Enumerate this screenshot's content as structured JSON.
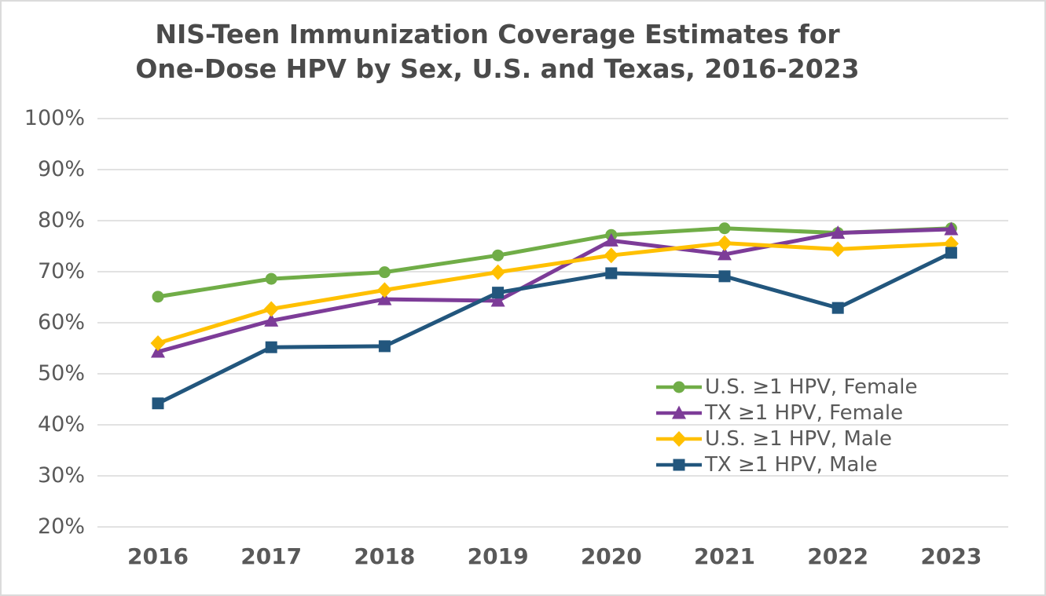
{
  "window": {
    "background": "#ffffff",
    "border_color": "#dbdbdb",
    "gridline_color": "#d9d9d9",
    "axis_text_color": "#595959",
    "title_text_color": "#4a4a4a"
  },
  "chart_data": {
    "type": "line",
    "title": "NIS-Teen Immunization Coverage Estimates for One-Dose HPV by Sex, U.S. and Texas, 2016-2023",
    "title_line1": "NIS-Teen Immunization Coverage Estimates for",
    "title_line2": "One-Dose HPV by Sex, U.S. and Texas, 2016-2023",
    "categories": [
      "2016",
      "2017",
      "2018",
      "2019",
      "2020",
      "2021",
      "2022",
      "2023"
    ],
    "series": [
      {
        "name": "U.S. ≥1 HPV, Female",
        "color": "#70AD47",
        "marker": "circle",
        "values": [
          65.1,
          68.6,
          69.9,
          73.2,
          77.2,
          78.5,
          77.6,
          78.5
        ]
      },
      {
        "name": "TX ≥1 HPV, Female",
        "color": "#7D3C98",
        "marker": "triangle",
        "values": [
          54.3,
          60.4,
          64.6,
          64.3,
          76.1,
          73.4,
          77.6,
          78.3
        ]
      },
      {
        "name": "U.S. ≥1 HPV, Male",
        "color": "#FFC000",
        "marker": "diamond",
        "values": [
          56.0,
          62.7,
          66.4,
          69.9,
          73.2,
          75.6,
          74.4,
          75.5
        ]
      },
      {
        "name": "TX ≥1 HPV, Male",
        "color": "#22567D",
        "marker": "square",
        "values": [
          44.2,
          55.2,
          55.4,
          65.9,
          69.7,
          69.1,
          62.9,
          73.7
        ]
      }
    ],
    "ylim": [
      20,
      100
    ],
    "ytick_step": 10,
    "ytick_labels": [
      "20%",
      "30%",
      "40%",
      "50%",
      "60%",
      "70%",
      "80%",
      "90%",
      "100%"
    ],
    "xlabel": "",
    "ylabel": "",
    "grid": true,
    "legend_position": "inside-right"
  }
}
